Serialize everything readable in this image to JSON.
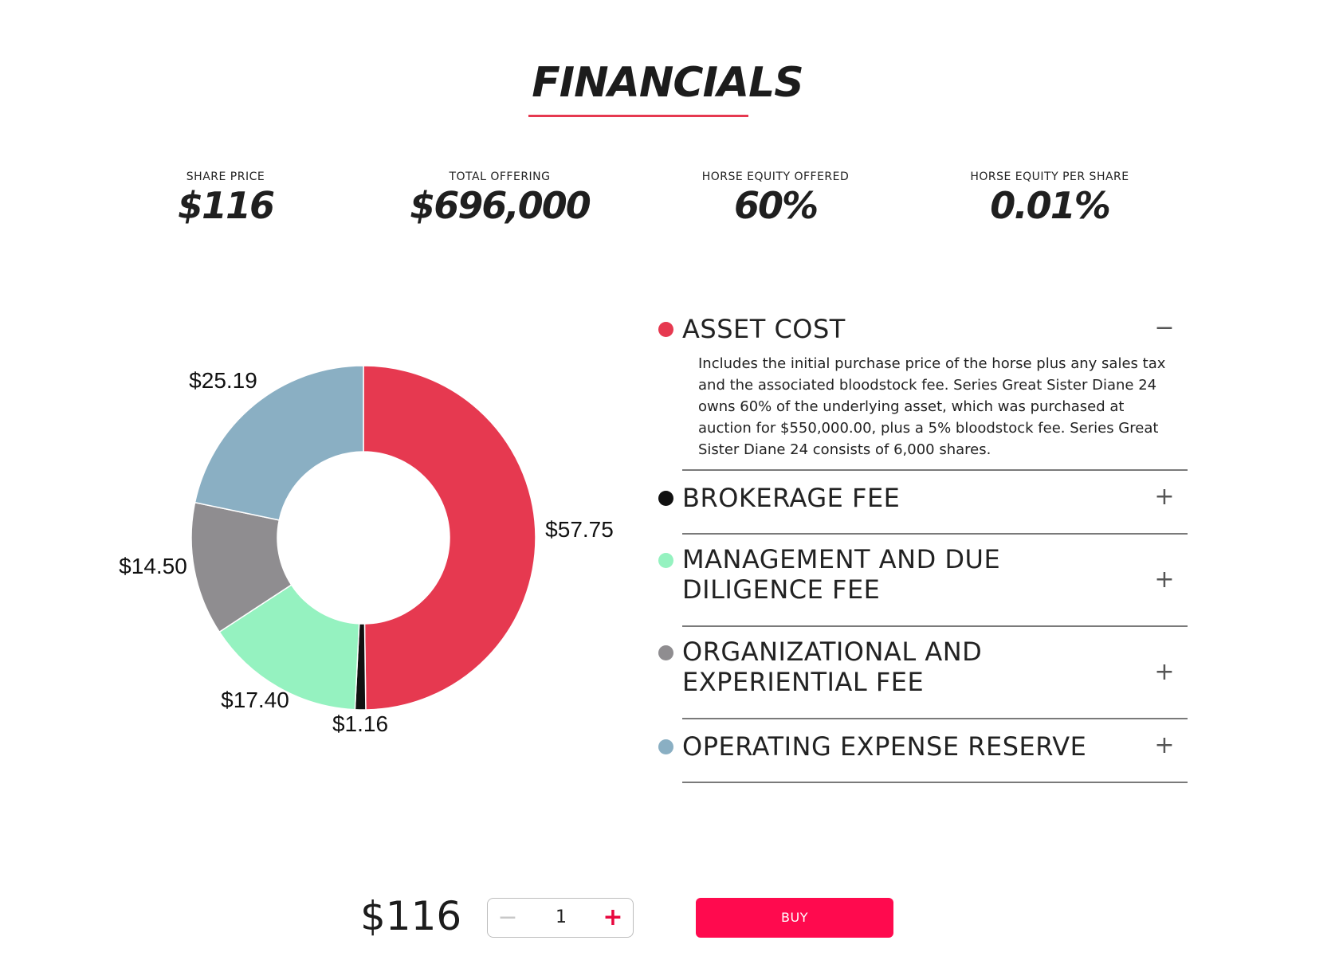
{
  "page": {
    "title": "FINANCIALS",
    "accent_color": "#e63950"
  },
  "stats": [
    {
      "label": "SHARE PRICE",
      "value": "$116"
    },
    {
      "label": "TOTAL OFFERING",
      "value": "$696,000"
    },
    {
      "label": "HORSE EQUITY OFFERED",
      "value": "60%"
    },
    {
      "label": "HORSE EQUITY PER SHARE",
      "value": "0.01%"
    }
  ],
  "chart_data": {
    "type": "pie",
    "donut": true,
    "categories": [
      "ASSET COST",
      "BROKERAGE FEE",
      "MANAGEMENT AND DUE DILIGENCE FEE",
      "ORGANIZATIONAL AND EXPERIENTIAL FEE",
      "OPERATING EXPENSE RESERVE"
    ],
    "values": [
      57.75,
      1.16,
      17.4,
      14.5,
      25.19
    ],
    "data_labels": [
      "$57.75",
      "$1.16",
      "$17.40",
      "$14.50",
      "$25.19"
    ],
    "colors": [
      "#e63950",
      "#111111",
      "#95f2c0",
      "#8f8d90",
      "#8aafc3"
    ]
  },
  "breakdown": [
    {
      "title": "ASSET COST",
      "color": "#e63950",
      "expanded": true,
      "toggle": "−",
      "description": "Includes the initial purchase price of the horse plus any sales tax and the associated bloodstock fee. Series Great Sister Diane 24 owns 60% of the underlying asset, which was purchased at auction for $550,000.00, plus a 5% bloodstock fee. Series Great Sister Diane 24 consists of 6,000 shares."
    },
    {
      "title": "BROKERAGE FEE",
      "color": "#111111",
      "expanded": false,
      "toggle": "+"
    },
    {
      "title": "MANAGEMENT AND DUE DILIGENCE FEE",
      "color": "#95f2c0",
      "expanded": false,
      "toggle": "+"
    },
    {
      "title": "ORGANIZATIONAL AND EXPERIENTIAL FEE",
      "color": "#8f8d90",
      "expanded": false,
      "toggle": "+"
    },
    {
      "title": "OPERATING EXPENSE RESERVE",
      "color": "#8aafc3",
      "expanded": false,
      "toggle": "+"
    }
  ],
  "purchase": {
    "price": "$116",
    "quantity": "1",
    "decrement": "−",
    "increment": "+",
    "buy_label": "BUY",
    "buy_color": "#ff0a4e"
  }
}
